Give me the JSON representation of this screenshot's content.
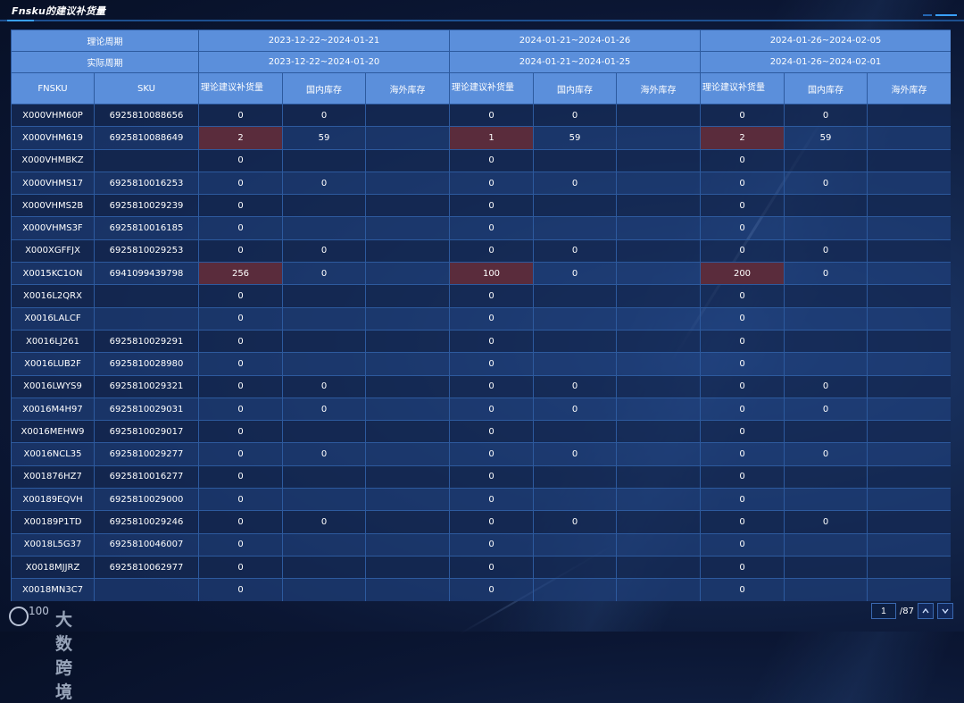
{
  "header": {
    "title": "Fnsku的建议补货量"
  },
  "table": {
    "label_theory_period": "理论周期",
    "label_actual_period": "实际周期",
    "periods": [
      {
        "theory": "2023-12-22~2024-01-21",
        "actual": "2023-12-22~2024-01-20"
      },
      {
        "theory": "2024-01-21~2024-01-26",
        "actual": "2024-01-21~2024-01-25"
      },
      {
        "theory": "2024-01-26~2024-02-05",
        "actual": "2024-01-26~2024-02-01"
      }
    ],
    "col_fnsku": "FNSKU",
    "col_sku": "SKU",
    "col_suggest": "理论建议补货量",
    "col_domestic": "国内库存",
    "col_overseas": "海外库存",
    "rows": [
      {
        "fnsku": "X000VHM60P",
        "sku": "6925810088656",
        "p": [
          [
            "0",
            "0",
            ""
          ],
          [
            "0",
            "0",
            ""
          ],
          [
            "0",
            "0",
            ""
          ]
        ],
        "hl": [
          false,
          false,
          false
        ]
      },
      {
        "fnsku": "X000VHM619",
        "sku": "6925810088649",
        "p": [
          [
            "2",
            "59",
            ""
          ],
          [
            "1",
            "59",
            ""
          ],
          [
            "2",
            "59",
            ""
          ]
        ],
        "hl": [
          true,
          true,
          true
        ]
      },
      {
        "fnsku": "X000VHMBKZ",
        "sku": "",
        "p": [
          [
            "0",
            "",
            ""
          ],
          [
            "0",
            "",
            ""
          ],
          [
            "0",
            "",
            ""
          ]
        ],
        "hl": [
          false,
          false,
          false
        ]
      },
      {
        "fnsku": "X000VHMS17",
        "sku": "6925810016253",
        "p": [
          [
            "0",
            "0",
            ""
          ],
          [
            "0",
            "0",
            ""
          ],
          [
            "0",
            "0",
            ""
          ]
        ],
        "hl": [
          false,
          false,
          false
        ]
      },
      {
        "fnsku": "X000VHMS2B",
        "sku": "6925810029239",
        "p": [
          [
            "0",
            "",
            ""
          ],
          [
            "0",
            "",
            ""
          ],
          [
            "0",
            "",
            ""
          ]
        ],
        "hl": [
          false,
          false,
          false
        ]
      },
      {
        "fnsku": "X000VHMS3F",
        "sku": "6925810016185",
        "p": [
          [
            "0",
            "",
            ""
          ],
          [
            "0",
            "",
            ""
          ],
          [
            "0",
            "",
            ""
          ]
        ],
        "hl": [
          false,
          false,
          false
        ]
      },
      {
        "fnsku": "X000XGFFJX",
        "sku": "6925810029253",
        "p": [
          [
            "0",
            "0",
            ""
          ],
          [
            "0",
            "0",
            ""
          ],
          [
            "0",
            "0",
            ""
          ]
        ],
        "hl": [
          false,
          false,
          false
        ]
      },
      {
        "fnsku": "X0015KC1ON",
        "sku": "6941099439798",
        "p": [
          [
            "256",
            "0",
            ""
          ],
          [
            "100",
            "0",
            ""
          ],
          [
            "200",
            "0",
            ""
          ]
        ],
        "hl": [
          true,
          true,
          true
        ]
      },
      {
        "fnsku": "X0016L2QRX",
        "sku": "",
        "p": [
          [
            "0",
            "",
            ""
          ],
          [
            "0",
            "",
            ""
          ],
          [
            "0",
            "",
            ""
          ]
        ],
        "hl": [
          false,
          false,
          false
        ]
      },
      {
        "fnsku": "X0016LALCF",
        "sku": "",
        "p": [
          [
            "0",
            "",
            ""
          ],
          [
            "0",
            "",
            ""
          ],
          [
            "0",
            "",
            ""
          ]
        ],
        "hl": [
          false,
          false,
          false
        ]
      },
      {
        "fnsku": "X0016LJ261",
        "sku": "6925810029291",
        "p": [
          [
            "0",
            "",
            ""
          ],
          [
            "0",
            "",
            ""
          ],
          [
            "0",
            "",
            ""
          ]
        ],
        "hl": [
          false,
          false,
          false
        ]
      },
      {
        "fnsku": "X0016LUB2F",
        "sku": "6925810028980",
        "p": [
          [
            "0",
            "",
            ""
          ],
          [
            "0",
            "",
            ""
          ],
          [
            "0",
            "",
            ""
          ]
        ],
        "hl": [
          false,
          false,
          false
        ]
      },
      {
        "fnsku": "X0016LWYS9",
        "sku": "6925810029321",
        "p": [
          [
            "0",
            "0",
            ""
          ],
          [
            "0",
            "0",
            ""
          ],
          [
            "0",
            "0",
            ""
          ]
        ],
        "hl": [
          false,
          false,
          false
        ]
      },
      {
        "fnsku": "X0016M4H97",
        "sku": "6925810029031",
        "p": [
          [
            "0",
            "0",
            ""
          ],
          [
            "0",
            "0",
            ""
          ],
          [
            "0",
            "0",
            ""
          ]
        ],
        "hl": [
          false,
          false,
          false
        ]
      },
      {
        "fnsku": "X0016MEHW9",
        "sku": "6925810029017",
        "p": [
          [
            "0",
            "",
            ""
          ],
          [
            "0",
            "",
            ""
          ],
          [
            "0",
            "",
            ""
          ]
        ],
        "hl": [
          false,
          false,
          false
        ]
      },
      {
        "fnsku": "X0016NCL35",
        "sku": "6925810029277",
        "p": [
          [
            "0",
            "0",
            ""
          ],
          [
            "0",
            "0",
            ""
          ],
          [
            "0",
            "0",
            ""
          ]
        ],
        "hl": [
          false,
          false,
          false
        ]
      },
      {
        "fnsku": "X001876HZ7",
        "sku": "6925810016277",
        "p": [
          [
            "0",
            "",
            ""
          ],
          [
            "0",
            "",
            ""
          ],
          [
            "0",
            "",
            ""
          ]
        ],
        "hl": [
          false,
          false,
          false
        ]
      },
      {
        "fnsku": "X00189EQVH",
        "sku": "6925810029000",
        "p": [
          [
            "0",
            "",
            ""
          ],
          [
            "0",
            "",
            ""
          ],
          [
            "0",
            "",
            ""
          ]
        ],
        "hl": [
          false,
          false,
          false
        ]
      },
      {
        "fnsku": "X00189P1TD",
        "sku": "6925810029246",
        "p": [
          [
            "0",
            "0",
            ""
          ],
          [
            "0",
            "0",
            ""
          ],
          [
            "0",
            "0",
            ""
          ]
        ],
        "hl": [
          false,
          false,
          false
        ]
      },
      {
        "fnsku": "X0018L5G37",
        "sku": "6925810046007",
        "p": [
          [
            "0",
            "",
            ""
          ],
          [
            "0",
            "",
            ""
          ],
          [
            "0",
            "",
            ""
          ]
        ],
        "hl": [
          false,
          false,
          false
        ]
      },
      {
        "fnsku": "X0018MJJRZ",
        "sku": "6925810062977",
        "p": [
          [
            "0",
            "",
            ""
          ],
          [
            "0",
            "",
            ""
          ],
          [
            "0",
            "",
            ""
          ]
        ],
        "hl": [
          false,
          false,
          false
        ]
      },
      {
        "fnsku": "X0018MN3C7",
        "sku": "",
        "p": [
          [
            "0",
            "",
            ""
          ],
          [
            "0",
            "",
            ""
          ],
          [
            "0",
            "",
            ""
          ]
        ],
        "hl": [
          false,
          false,
          false
        ]
      }
    ]
  },
  "footer": {
    "logo_text": "大数跨境",
    "logo_prefix": "100",
    "page_current": "1",
    "page_total": "/87",
    "prev_icon": "chevron-up-icon",
    "next_icon": "chevron-down-icon"
  },
  "colors": {
    "header_bg": "#5b8fdb",
    "highlight_cell": "#5a2c3c",
    "border": "#2d5a9e"
  }
}
